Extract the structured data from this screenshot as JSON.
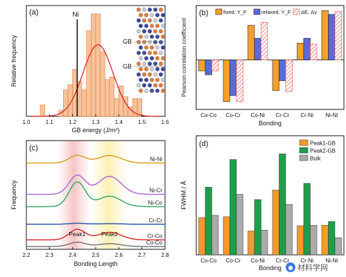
{
  "chart_data": [
    {
      "panel": "(a)",
      "type": "bar",
      "xlabel": "GB energy (J/m²)",
      "ylabel": "Relative frequency",
      "xlim": [
        1.0,
        1.6
      ],
      "xticks": [
        "1.0",
        "1.1",
        "1.2",
        "1.3",
        "1.4",
        "1.5",
        "1.6"
      ],
      "bin_width": 0.02,
      "bins": [
        {
          "x": 1.07,
          "y": 0.18
        },
        {
          "x": 1.15,
          "y": 0.1
        },
        {
          "x": 1.17,
          "y": 0.42
        },
        {
          "x": 1.19,
          "y": 0.5
        },
        {
          "x": 1.21,
          "y": 0.74
        },
        {
          "x": 1.23,
          "y": 0.55
        },
        {
          "x": 1.25,
          "y": 0.42
        },
        {
          "x": 1.27,
          "y": 1.35
        },
        {
          "x": 1.29,
          "y": 1.62
        },
        {
          "x": 1.31,
          "y": 1.62
        },
        {
          "x": 1.33,
          "y": 1.02
        },
        {
          "x": 1.35,
          "y": 0.58
        },
        {
          "x": 1.37,
          "y": 0.62
        },
        {
          "x": 1.39,
          "y": 0.28
        },
        {
          "x": 1.41,
          "y": 0.48
        },
        {
          "x": 1.43,
          "y": 0.31
        },
        {
          "x": 1.45,
          "y": 0.15
        },
        {
          "x": 1.47,
          "y": 0.28
        },
        {
          "x": 1.49,
          "y": 0.28
        }
      ],
      "gauss_mu": 1.31,
      "gauss_sigma": 0.065,
      "gauss_peak": 1.13,
      "ymax": 1.75,
      "vline": {
        "label": "Ni",
        "x": 1.22
      },
      "inset_labels": [
        "GB",
        "GB"
      ],
      "colors": {
        "bar": "#f7c39a",
        "edge": "#e07a3c",
        "fit": "#d83030"
      }
    },
    {
      "panel": "(b)",
      "type": "bar",
      "ylabel": "Pearson correlation coefficient",
      "xlabel": "Bonding",
      "categories": [
        "Co-Co",
        "Co-Cr",
        "Co-Ni",
        "Cr-Cr",
        "Cr-Ni",
        "Ni-Ni"
      ],
      "ylim": [
        -0.5,
        0.55
      ],
      "series": [
        {
          "name": "fixed, Y_F",
          "color": "#f5a02a",
          "values": [
            -0.11,
            -0.42,
            0.35,
            -0.31,
            0.17,
            0.5
          ]
        },
        {
          "name": "relaxed, Y_F",
          "color": "#5a6bd8",
          "values": [
            -0.15,
            -0.36,
            0.22,
            -0.21,
            0.22,
            0.46
          ]
        },
        {
          "name": "ΔE, Δγ",
          "color": "#e84a4a",
          "hatch": true,
          "values": [
            -0.11,
            -0.42,
            0.38,
            -0.32,
            0.16,
            0.49
          ]
        }
      ]
    },
    {
      "panel": "(c)",
      "type": "line",
      "xlabel": "Bonding Length",
      "ylabel": "Frequency",
      "xlim": [
        2.2,
        2.8
      ],
      "xticks": [
        "2.2",
        "2.3",
        "2.4",
        "2.5",
        "2.6",
        "2.7",
        "2.8"
      ],
      "peaks": [
        "Peak1",
        "Peak2"
      ],
      "series": [
        {
          "name": "Ni-Ni",
          "color": "#d8a020",
          "baseline": 0.88,
          "a1": 0.08,
          "a2": 0.08
        },
        {
          "name": "Ni-Cr",
          "color": "#b069d8",
          "baseline": 0.55,
          "a1": 0.2,
          "a2": 0.19
        },
        {
          "name": "Ni-Co",
          "color": "#3aa86a",
          "baseline": 0.42,
          "a1": 0.26,
          "a2": 0.11
        },
        {
          "name": "Cr-Cr",
          "color": "#2c5aa8",
          "baseline": 0.235,
          "a1": 0.01,
          "a2": 0.006
        },
        {
          "name": "Cr-Co",
          "color": "#d03030",
          "baseline": 0.07,
          "a1": 0.11,
          "a2": 0.08
        },
        {
          "name": "Co-Co",
          "color": "#777777",
          "baseline": 0.0,
          "a1": 0.045,
          "a2": 0.03
        }
      ]
    },
    {
      "panel": "(d)",
      "type": "bar",
      "ylabel": "FWHM / Å",
      "xlabel": "Bonding",
      "categories": [
        "Co-Co",
        "Co-Cr",
        "Co-Ni",
        "Cr-Cr",
        "Cr-Ni",
        "Ni-Ni"
      ],
      "ylim": [
        0,
        0.25
      ],
      "series": [
        {
          "name": "Peak1-GB",
          "color": "#f59a2a",
          "values": [
            0.078,
            0.08,
            0.05,
            0.136,
            0.061,
            0.062
          ]
        },
        {
          "name": "Peak2-GB",
          "color": "#1e9e4a",
          "values": [
            0.142,
            0.2,
            0.116,
            0.212,
            0.15,
            0.07
          ]
        },
        {
          "name": "Bulk",
          "color": "#aaaaaa",
          "values": [
            0.083,
            0.127,
            0.052,
            0.106,
            0.062,
            0.036
          ]
        }
      ]
    }
  ],
  "watermark": "材料学网"
}
